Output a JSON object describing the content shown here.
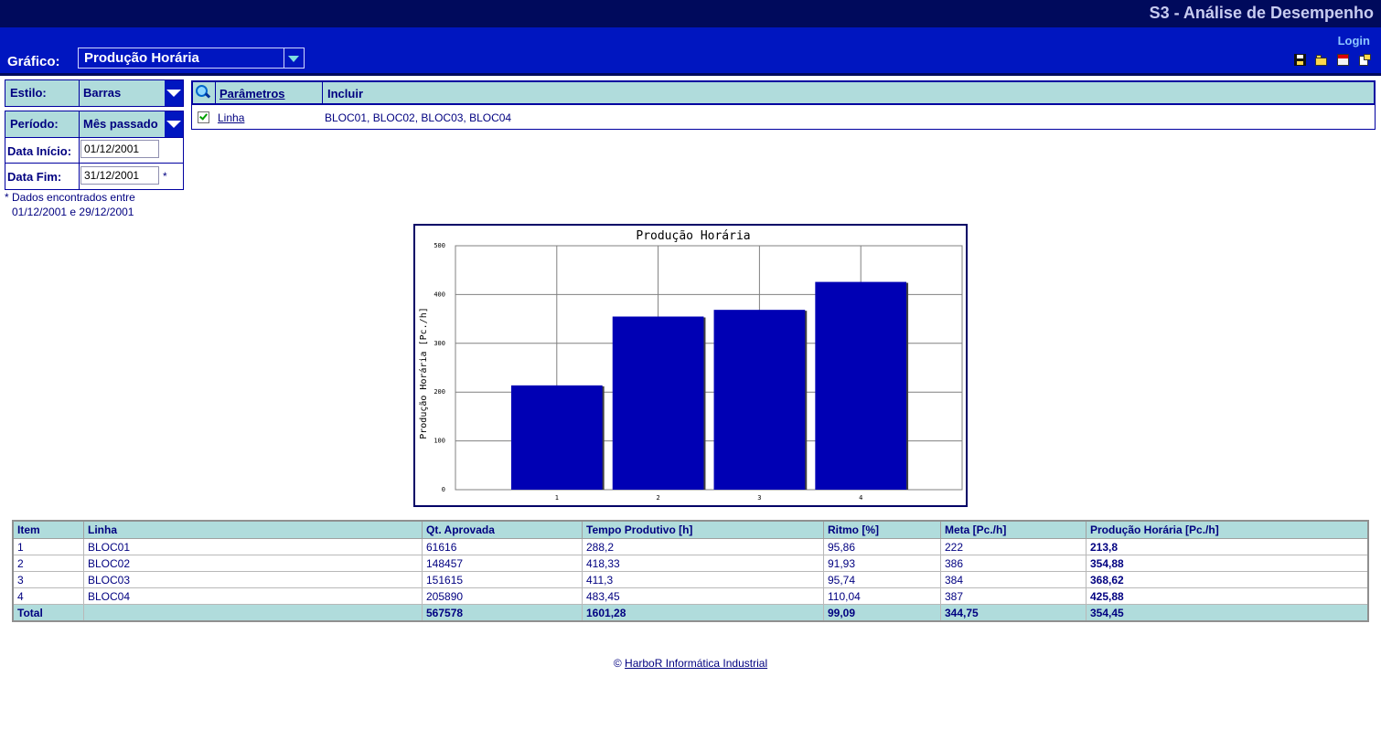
{
  "header": {
    "app_title": "S3 - Análise de Desempenho",
    "login_label": "Login",
    "grafico_label": "Gráfico:",
    "grafico_value": "Produção Horária",
    "tool_icons": [
      "save-icon",
      "open-folder-icon",
      "calendar-icon",
      "export-icon"
    ]
  },
  "left_panel": {
    "estilo_label": "Estilo:",
    "estilo_value": "Barras",
    "periodo_label": "Período:",
    "periodo_value": "Mês passado",
    "data_inicio_label": "Data Início:",
    "data_inicio_value": "01/12/2001",
    "data_fim_label": "Data Fim:",
    "data_fim_value": "31/12/2001",
    "asterisk": "*",
    "footnote_line1": "* Dados encontrados entre",
    "footnote_line2": "01/12/2001 e 29/12/2001"
  },
  "parameters": {
    "header_params": "Parâmetros",
    "header_incluir": "Incluir",
    "row_name": "Linha",
    "row_checked": true,
    "row_value": "BLOC01, BLOC02, BLOC03, BLOC04"
  },
  "chart_data": {
    "type": "bar",
    "title": "Produção Horária",
    "ylabel": "Produção Horária [Pc./h]",
    "xlabel": "",
    "categories": [
      "1",
      "2",
      "3",
      "4"
    ],
    "values": [
      213.8,
      354.88,
      368.62,
      425.88
    ],
    "ylim": [
      0,
      500
    ],
    "yticks": [
      "0",
      "100",
      "200",
      "300",
      "400",
      "500"
    ],
    "grid": true,
    "bar_color": "#0000b4"
  },
  "table": {
    "headers": [
      "Item",
      "Linha",
      "Qt. Aprovada",
      "Tempo Produtivo [h]",
      "Ritmo [%]",
      "Meta [Pc./h]",
      "Produção Horária [Pc./h]"
    ],
    "rows": [
      [
        "1",
        "BLOC01",
        "61616",
        "288,2",
        "95,86",
        "222",
        "213,8"
      ],
      [
        "2",
        "BLOC02",
        "148457",
        "418,33",
        "91,93",
        "386",
        "354,88"
      ],
      [
        "3",
        "BLOC03",
        "151615",
        "411,3",
        "95,74",
        "384",
        "368,62"
      ],
      [
        "4",
        "BLOC04",
        "205890",
        "483,45",
        "110,04",
        "387",
        "425,88"
      ]
    ],
    "total": [
      "Total",
      "",
      "567578",
      "1601,28",
      "99,09",
      "344,75",
      "354,45"
    ]
  },
  "footer": {
    "symbol": "©",
    "link_text": "HarboR Informática Industrial"
  }
}
